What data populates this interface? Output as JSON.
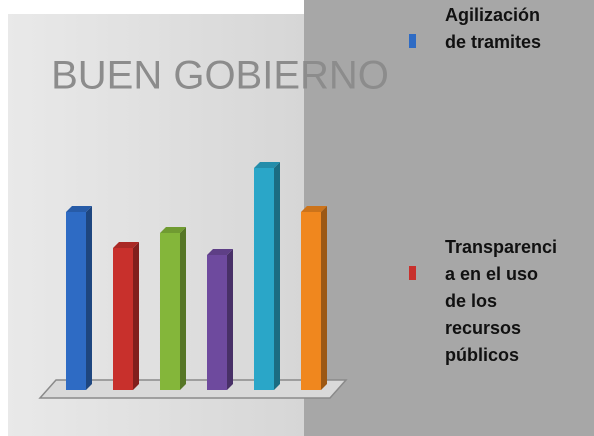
{
  "chart_data": {
    "type": "bar3d",
    "title": "BUEN GOBIERNO",
    "series": [
      {
        "name": "Agilización de tramites",
        "color": "#2e6bc4",
        "values": [
          178
        ]
      },
      {
        "name": "Transparencia en el uso de los recursos públicos",
        "color": "#c8302c",
        "values": [
          142
        ]
      },
      {
        "color": "#84b63a",
        "values": [
          157
        ]
      },
      {
        "color": "#6e4a9e",
        "values": [
          135
        ]
      },
      {
        "color": "#2aa6c8",
        "values": [
          222
        ]
      },
      {
        "color": "#f0871e",
        "values": [
          178
        ]
      }
    ]
  }
}
